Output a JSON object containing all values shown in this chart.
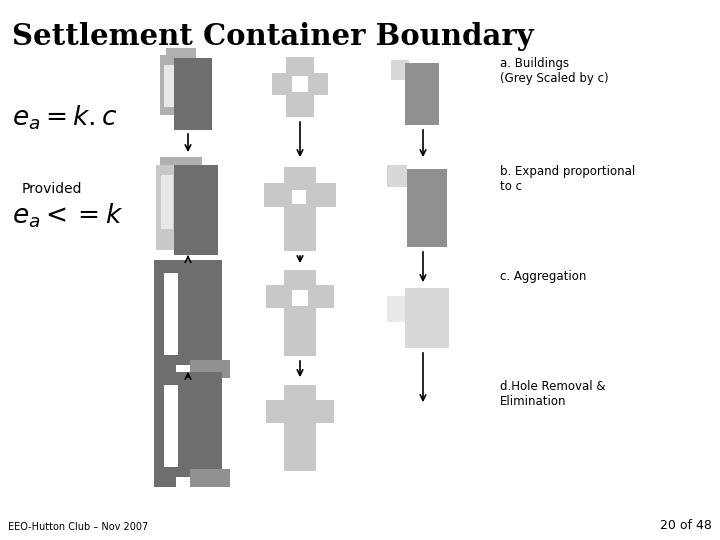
{
  "title": "Settlement Container Boundary",
  "footer": "EEO-Hutton Club – Nov 2007",
  "page": "20 of 48",
  "background_color": "#ffffff",
  "labels_a": "a. Buildings\n(Grey Scaled by c)",
  "labels_b": "b. Expand proportional\nto c",
  "labels_c": "c. Aggregation",
  "labels_d": "d.Hole Removal &\nElimination",
  "gray_dark": "#6e6e6e",
  "gray_mid": "#909090",
  "gray_light": "#b0b0b0",
  "gray_lighter": "#c8c8c8",
  "gray_lightest": "#d8d8d8",
  "gray_vlightest": "#e8e8e8",
  "white": "#ffffff"
}
